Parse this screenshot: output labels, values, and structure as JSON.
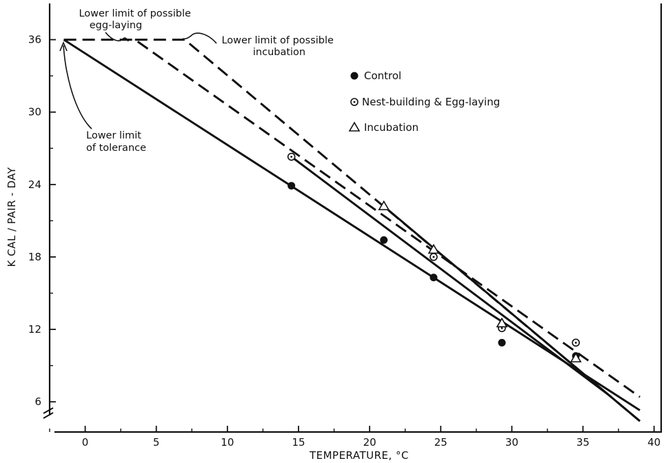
{
  "chart_data": {
    "type": "scatter",
    "xlabel": "TEMPERATURE, °C",
    "ylabel": "K CAL / PAIR - DAY",
    "xlim": [
      -2.5,
      40.5
    ],
    "ylim": [
      3.5,
      39
    ],
    "x_ticks": [
      0,
      5,
      10,
      15,
      20,
      25,
      30,
      35,
      40
    ],
    "y_ticks": [
      6,
      12,
      18,
      24,
      30,
      36
    ],
    "grid": false,
    "legend_position": "top-right",
    "series": [
      {
        "name": "Control",
        "marker": "filled-circle",
        "points": [
          [
            14.5,
            23.9
          ],
          [
            21,
            19.4
          ],
          [
            24.5,
            16.3
          ],
          [
            29.3,
            10.9
          ],
          [
            34.5,
            9.8
          ]
        ]
      },
      {
        "name": "Nest-building & Egg-laying",
        "marker": "dotted-circle",
        "points": [
          [
            14.5,
            26.3
          ],
          [
            24.5,
            18
          ],
          [
            29.3,
            12.1
          ],
          [
            34.5,
            10.9
          ]
        ]
      },
      {
        "name": "Incubation",
        "marker": "triangle",
        "points": [
          [
            21,
            22.2
          ],
          [
            24.5,
            18.6
          ],
          [
            29.3,
            12.5
          ],
          [
            34.5,
            9.6
          ]
        ]
      }
    ],
    "lines": [
      {
        "style": "solid",
        "points": [
          [
            -1.5,
            36
          ],
          [
            39,
            5.3
          ]
        ]
      },
      {
        "style": "solid",
        "points": [
          [
            14.5,
            26.3
          ],
          [
            37,
            6.4
          ]
        ]
      },
      {
        "style": "solid",
        "points": [
          [
            21,
            22.2
          ],
          [
            39,
            4.4
          ]
        ]
      },
      {
        "style": "dashed",
        "points": [
          [
            -1.5,
            36
          ],
          [
            3.5,
            36
          ],
          [
            39,
            6.4
          ]
        ]
      },
      {
        "style": "dashed",
        "points": [
          [
            3.5,
            36
          ],
          [
            7,
            36
          ],
          [
            39,
            4.4
          ]
        ]
      }
    ],
    "annotations": [
      {
        "lines": [
          "Lower limit of possible",
          "egg-laying"
        ]
      },
      {
        "lines": [
          "Lower limit of possible",
          "incubation"
        ]
      },
      {
        "lines": [
          "Lower limit",
          "of tolerance"
        ]
      }
    ]
  }
}
